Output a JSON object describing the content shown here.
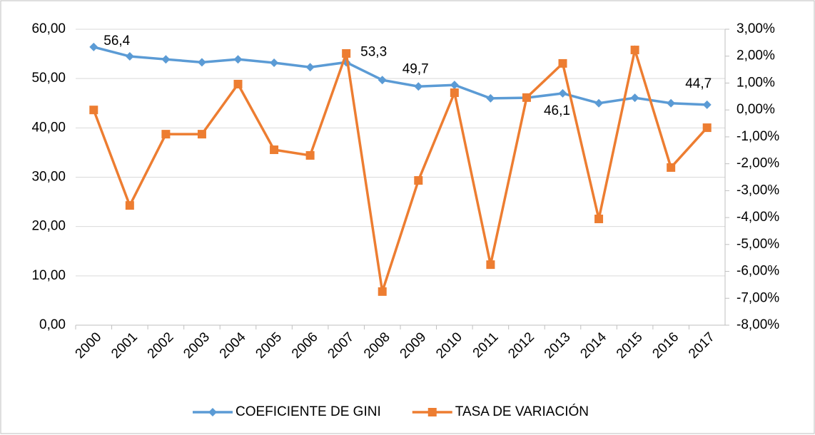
{
  "chart_data": {
    "type": "line",
    "categories": [
      "2000",
      "2001",
      "2002",
      "2003",
      "2004",
      "2005",
      "2006",
      "2007",
      "2008",
      "2009",
      "2010",
      "2011",
      "2012",
      "2013",
      "2014",
      "2015",
      "2016",
      "2017"
    ],
    "series": [
      {
        "name": "COEFICIENTE DE GINI",
        "color": "#5b9bd5",
        "marker": "diamond",
        "values": [
          56.4,
          54.5,
          53.9,
          53.3,
          53.9,
          53.2,
          52.3,
          53.3,
          49.7,
          48.4,
          48.7,
          46.0,
          46.1,
          47.0,
          45.0,
          46.1,
          45.0,
          44.7
        ],
        "value_labels": [
          "56,4",
          null,
          null,
          null,
          null,
          null,
          null,
          "53,3",
          "49,7",
          null,
          null,
          null,
          "46,1",
          null,
          null,
          null,
          null,
          "44,7"
        ]
      },
      {
        "name": "TASA DE VARIACIÓN",
        "color": "#ed7d31",
        "marker": "square",
        "axis": "y2",
        "values": [
          0.0,
          -3.55,
          -0.9,
          -0.9,
          0.96,
          -1.48,
          -1.69,
          2.1,
          -6.75,
          -2.62,
          0.64,
          -5.75,
          0.46,
          1.73,
          -4.05,
          2.23,
          -2.14,
          -0.66
        ]
      }
    ],
    "ylim": [
      0,
      60
    ],
    "yticks": [
      {
        "value": 0,
        "label": "0,00"
      },
      {
        "value": 10,
        "label": "10,00"
      },
      {
        "value": 20,
        "label": "20,00"
      },
      {
        "value": 30,
        "label": "30,00"
      },
      {
        "value": 40,
        "label": "40,00"
      },
      {
        "value": 50,
        "label": "50,00"
      },
      {
        "value": 60,
        "label": "60,00"
      }
    ],
    "y2lim": [
      -8,
      3
    ],
    "y2ticks": [
      {
        "value": -8,
        "label": "-8,00%"
      },
      {
        "value": -7,
        "label": "-7,00%"
      },
      {
        "value": -6,
        "label": "-6,00%"
      },
      {
        "value": -5,
        "label": "-5,00%"
      },
      {
        "value": -4,
        "label": "-4,00%"
      },
      {
        "value": -3,
        "label": "-3,00%"
      },
      {
        "value": -2,
        "label": "-2,00%"
      },
      {
        "value": -1,
        "label": "-1,00%"
      },
      {
        "value": 0,
        "label": "0,00%"
      },
      {
        "value": 1,
        "label": "1,00%"
      },
      {
        "value": 2,
        "label": "2,00%"
      },
      {
        "value": 3,
        "label": "3,00%"
      }
    ],
    "grid": true,
    "legend": "bottom"
  }
}
